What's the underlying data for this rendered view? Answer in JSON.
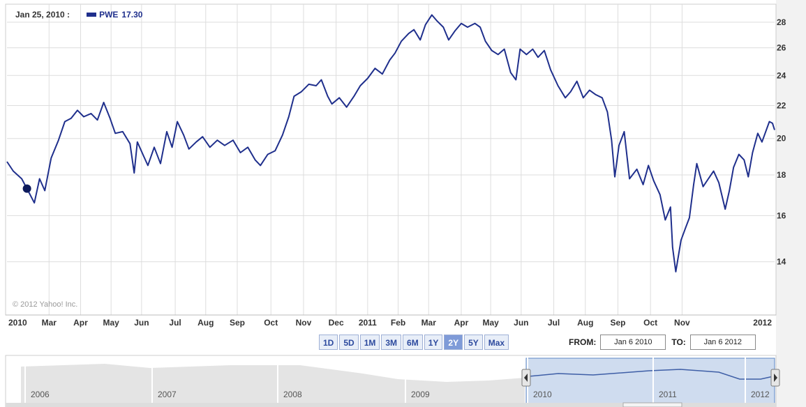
{
  "header": {
    "date": "Jan 25, 2010 :",
    "series_name": "PWE",
    "series_value": "17.30"
  },
  "copyright": "© 2012 Yahoo! Inc.",
  "colors": {
    "line": "#1f2f8c",
    "grid": "#dddddd",
    "active_button": "#7f9bd8",
    "nav_fill": "#cfdcef"
  },
  "range_buttons": [
    {
      "label": "1D",
      "active": false
    },
    {
      "label": "5D",
      "active": false
    },
    {
      "label": "1M",
      "active": false
    },
    {
      "label": "3M",
      "active": false
    },
    {
      "label": "6M",
      "active": false
    },
    {
      "label": "1Y",
      "active": false
    },
    {
      "label": "2Y",
      "active": true
    },
    {
      "label": "5Y",
      "active": false
    },
    {
      "label": "Max",
      "active": false
    }
  ],
  "date_range": {
    "from_label": "FROM:",
    "from_value": "Jan 6 2010",
    "to_label": "TO:",
    "to_value": "Jan 6 2012"
  },
  "navigator": {
    "year_labels": [
      "2006",
      "2007",
      "2008",
      "2009",
      "2010",
      "2011",
      "2012"
    ]
  },
  "chart_data": {
    "type": "line",
    "grid": true,
    "y_axis_position": "right",
    "ylim": [
      12,
      29.5
    ],
    "yticks": [
      14,
      16,
      18,
      20,
      22,
      24,
      26,
      28
    ],
    "xlim": [
      "2010-01-06",
      "2012-01-06"
    ],
    "x_tick_labels": [
      {
        "date": "2010-01-06",
        "label": "2010"
      },
      {
        "date": "2010-02-15",
        "label": "Mar"
      },
      {
        "date": "2010-03-17",
        "label": "Apr"
      },
      {
        "date": "2010-04-15",
        "label": "May"
      },
      {
        "date": "2010-05-14",
        "label": "Jun"
      },
      {
        "date": "2010-06-15",
        "label": "Jul"
      },
      {
        "date": "2010-07-14",
        "label": "Aug"
      },
      {
        "date": "2010-08-13",
        "label": "Sep"
      },
      {
        "date": "2010-09-14",
        "label": "Oct"
      },
      {
        "date": "2010-10-15",
        "label": "Nov"
      },
      {
        "date": "2010-11-15",
        "label": "Dec"
      },
      {
        "date": "2010-12-15",
        "label": "2011"
      },
      {
        "date": "2011-01-13",
        "label": "Feb"
      },
      {
        "date": "2011-02-11",
        "label": "Mar"
      },
      {
        "date": "2011-03-14",
        "label": "Apr"
      },
      {
        "date": "2011-04-11",
        "label": "May"
      },
      {
        "date": "2011-05-10",
        "label": "Jun"
      },
      {
        "date": "2011-06-10",
        "label": "Jul"
      },
      {
        "date": "2011-07-10",
        "label": "Aug"
      },
      {
        "date": "2011-08-10",
        "label": "Sep"
      },
      {
        "date": "2011-09-10",
        "label": "Oct"
      },
      {
        "date": "2011-10-10",
        "label": "Nov"
      },
      {
        "date": "2012-01-01",
        "label": "2012"
      }
    ],
    "series": [
      {
        "marker": {
          "date": "2010-01-25",
          "value": 17.3
        },
        "points": [
          [
            "2010-01-06",
            18.7
          ],
          [
            "2010-01-12",
            18.2
          ],
          [
            "2010-01-20",
            17.8
          ],
          [
            "2010-01-25",
            17.3
          ],
          [
            "2010-02-01",
            16.6
          ],
          [
            "2010-02-06",
            17.8
          ],
          [
            "2010-02-11",
            17.2
          ],
          [
            "2010-02-17",
            18.9
          ],
          [
            "2010-02-24",
            19.9
          ],
          [
            "2010-03-02",
            21.0
          ],
          [
            "2010-03-08",
            21.2
          ],
          [
            "2010-03-14",
            21.7
          ],
          [
            "2010-03-20",
            21.3
          ],
          [
            "2010-03-27",
            21.5
          ],
          [
            "2010-04-02",
            21.1
          ],
          [
            "2010-04-08",
            22.2
          ],
          [
            "2010-04-14",
            21.2
          ],
          [
            "2010-04-19",
            20.3
          ],
          [
            "2010-04-26",
            20.4
          ],
          [
            "2010-05-03",
            19.7
          ],
          [
            "2010-05-07",
            18.1
          ],
          [
            "2010-05-10",
            19.8
          ],
          [
            "2010-05-16",
            19.0
          ],
          [
            "2010-05-20",
            18.5
          ],
          [
            "2010-05-26",
            19.5
          ],
          [
            "2010-06-01",
            18.6
          ],
          [
            "2010-06-07",
            20.4
          ],
          [
            "2010-06-12",
            19.5
          ],
          [
            "2010-06-17",
            21.0
          ],
          [
            "2010-06-23",
            20.2
          ],
          [
            "2010-06-28",
            19.4
          ],
          [
            "2010-07-05",
            19.8
          ],
          [
            "2010-07-11",
            20.1
          ],
          [
            "2010-07-18",
            19.5
          ],
          [
            "2010-07-25",
            19.9
          ],
          [
            "2010-08-01",
            19.6
          ],
          [
            "2010-08-09",
            19.9
          ],
          [
            "2010-08-16",
            19.2
          ],
          [
            "2010-08-23",
            19.5
          ],
          [
            "2010-08-30",
            18.8
          ],
          [
            "2010-09-04",
            18.5
          ],
          [
            "2010-09-11",
            19.1
          ],
          [
            "2010-09-18",
            19.3
          ],
          [
            "2010-09-25",
            20.2
          ],
          [
            "2010-10-01",
            21.3
          ],
          [
            "2010-10-06",
            22.6
          ],
          [
            "2010-10-13",
            22.9
          ],
          [
            "2010-10-20",
            23.4
          ],
          [
            "2010-10-27",
            23.3
          ],
          [
            "2010-11-01",
            23.7
          ],
          [
            "2010-11-07",
            22.6
          ],
          [
            "2010-11-11",
            22.1
          ],
          [
            "2010-11-18",
            22.5
          ],
          [
            "2010-11-25",
            21.9
          ],
          [
            "2010-12-02",
            22.6
          ],
          [
            "2010-12-08",
            23.3
          ],
          [
            "2010-12-15",
            23.8
          ],
          [
            "2010-12-22",
            24.5
          ],
          [
            "2010-12-29",
            24.1
          ],
          [
            "2011-01-05",
            25.1
          ],
          [
            "2011-01-10",
            25.6
          ],
          [
            "2011-01-16",
            26.5
          ],
          [
            "2011-01-23",
            27.1
          ],
          [
            "2011-01-28",
            27.4
          ],
          [
            "2011-02-03",
            26.6
          ],
          [
            "2011-02-08",
            27.8
          ],
          [
            "2011-02-14",
            28.6
          ],
          [
            "2011-02-19",
            28.1
          ],
          [
            "2011-02-25",
            27.6
          ],
          [
            "2011-03-02",
            26.6
          ],
          [
            "2011-03-08",
            27.3
          ],
          [
            "2011-03-14",
            27.9
          ],
          [
            "2011-03-20",
            27.6
          ],
          [
            "2011-03-27",
            27.9
          ],
          [
            "2011-04-01",
            27.6
          ],
          [
            "2011-04-06",
            26.5
          ],
          [
            "2011-04-12",
            25.8
          ],
          [
            "2011-04-18",
            25.5
          ],
          [
            "2011-04-24",
            25.9
          ],
          [
            "2011-04-30",
            24.2
          ],
          [
            "2011-05-05",
            23.7
          ],
          [
            "2011-05-09",
            25.9
          ],
          [
            "2011-05-15",
            25.5
          ],
          [
            "2011-05-21",
            25.9
          ],
          [
            "2011-05-26",
            25.3
          ],
          [
            "2011-06-01",
            25.8
          ],
          [
            "2011-06-07",
            24.4
          ],
          [
            "2011-06-14",
            23.3
          ],
          [
            "2011-06-21",
            22.5
          ],
          [
            "2011-06-26",
            22.9
          ],
          [
            "2011-07-02",
            23.6
          ],
          [
            "2011-07-08",
            22.5
          ],
          [
            "2011-07-14",
            23.0
          ],
          [
            "2011-07-20",
            22.7
          ],
          [
            "2011-07-26",
            22.5
          ],
          [
            "2011-07-31",
            21.6
          ],
          [
            "2011-08-04",
            19.9
          ],
          [
            "2011-08-07",
            17.9
          ],
          [
            "2011-08-11",
            19.6
          ],
          [
            "2011-08-16",
            20.4
          ],
          [
            "2011-08-21",
            17.8
          ],
          [
            "2011-08-28",
            18.3
          ],
          [
            "2011-09-03",
            17.5
          ],
          [
            "2011-09-08",
            18.5
          ],
          [
            "2011-09-13",
            17.7
          ],
          [
            "2011-09-19",
            17.0
          ],
          [
            "2011-09-24",
            15.8
          ],
          [
            "2011-09-29",
            16.4
          ],
          [
            "2011-10-01",
            14.6
          ],
          [
            "2011-10-04",
            13.6
          ],
          [
            "2011-10-09",
            14.9
          ],
          [
            "2011-10-13",
            15.4
          ],
          [
            "2011-10-17",
            15.9
          ],
          [
            "2011-10-21",
            17.5
          ],
          [
            "2011-10-24",
            18.6
          ],
          [
            "2011-10-30",
            17.4
          ],
          [
            "2011-11-04",
            17.8
          ],
          [
            "2011-11-09",
            18.2
          ],
          [
            "2011-11-14",
            17.6
          ],
          [
            "2011-11-20",
            16.3
          ],
          [
            "2011-11-24",
            17.2
          ],
          [
            "2011-11-28",
            18.4
          ],
          [
            "2011-12-03",
            19.1
          ],
          [
            "2011-12-08",
            18.8
          ],
          [
            "2011-12-12",
            17.9
          ],
          [
            "2011-12-16",
            19.2
          ],
          [
            "2011-12-21",
            20.3
          ],
          [
            "2011-12-25",
            19.8
          ],
          [
            "2011-12-28",
            20.3
          ],
          [
            "2012-01-01",
            21.0
          ],
          [
            "2012-01-04",
            20.9
          ],
          [
            "2012-01-06",
            20.5
          ]
        ]
      }
    ]
  }
}
